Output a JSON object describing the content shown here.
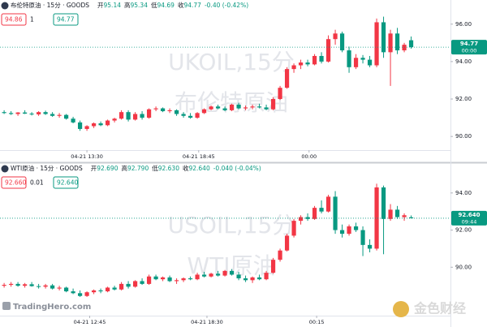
{
  "chart_data": [
    {
      "type": "candlestick",
      "title": "布伦特原油 · 15分 · GOODS",
      "header_ohlc": [
        {
          "label": "开",
          "value": "95.14"
        },
        {
          "label": "高",
          "value": "95.34"
        },
        {
          "label": "低",
          "value": "94.69"
        },
        {
          "label": "收",
          "value": "94.77"
        }
      ],
      "header_change": "-0.40 (-0.42%)",
      "boxes": [
        "94.86",
        "1",
        "94.77"
      ],
      "watermark": [
        "UKOIL,15分",
        "布伦特原油"
      ],
      "up_color": "#f23645",
      "down_color": "#089981",
      "xlim": [
        -0.6,
        64.7
      ],
      "ylim": [
        89.27,
        97.29
      ],
      "yticks": [
        {
          "value": 90,
          "label": "90.00"
        },
        {
          "value": 92,
          "label": "92.00"
        },
        {
          "value": 94,
          "label": "94.00"
        },
        {
          "value": 96,
          "label": "96.00"
        }
      ],
      "xticks": [
        {
          "value": 12,
          "label": "04-21 13:30"
        },
        {
          "value": 28.2,
          "label": "04-21 18:45"
        },
        {
          "value": 44.2,
          "label": "00:00"
        }
      ],
      "last_price": {
        "value": 94.77,
        "label": "94.77",
        "time": "00:00"
      },
      "open": [
        91.3,
        91.25,
        91.2,
        91.28,
        91.22,
        91.18,
        91.3,
        91.2,
        91.1,
        91.15,
        90.95,
        90.75,
        90.4,
        90.55,
        90.7,
        90.6,
        90.85,
        90.95,
        91.3,
        90.9,
        91.2,
        91.0,
        91.45,
        91.5,
        91.35,
        91.4,
        91.2,
        91.1,
        91.0,
        91.25,
        91.45,
        91.6,
        91.5,
        91.4,
        91.7,
        91.5,
        91.55,
        91.6,
        91.55,
        91.45,
        92.0,
        92.6,
        93.6,
        93.8,
        93.95,
        93.85,
        94.3,
        94.0,
        95.2,
        95.5,
        94.6,
        93.7,
        94.2,
        94.1,
        93.8,
        96.1,
        94.5,
        95.5,
        94.6,
        95.14
      ],
      "high": [
        91.4,
        91.35,
        91.3,
        91.4,
        91.3,
        91.35,
        91.38,
        91.3,
        91.25,
        91.2,
        91.05,
        90.85,
        90.6,
        90.75,
        90.8,
        90.9,
        91.0,
        91.4,
        91.4,
        91.3,
        91.35,
        91.5,
        91.6,
        91.55,
        91.5,
        91.45,
        91.3,
        91.25,
        91.3,
        91.5,
        91.65,
        91.7,
        91.6,
        91.75,
        91.8,
        91.65,
        91.7,
        91.75,
        91.7,
        92.1,
        92.7,
        93.7,
        93.9,
        94.1,
        94.1,
        94.4,
        94.5,
        95.4,
        95.7,
        95.6,
        94.8,
        94.4,
        94.35,
        94.3,
        96.3,
        96.4,
        95.7,
        95.8,
        95.0,
        95.34
      ],
      "low": [
        91.2,
        91.15,
        91.1,
        91.2,
        91.12,
        91.1,
        91.15,
        91.05,
        91.0,
        90.9,
        90.7,
        90.3,
        90.3,
        90.45,
        90.55,
        90.55,
        90.75,
        90.9,
        90.8,
        90.85,
        90.9,
        90.95,
        91.35,
        91.3,
        91.25,
        91.1,
        91.0,
        90.95,
        90.95,
        91.2,
        91.4,
        91.45,
        91.35,
        91.35,
        91.45,
        91.4,
        91.45,
        91.5,
        91.4,
        91.4,
        91.95,
        92.55,
        93.4,
        93.6,
        93.75,
        93.8,
        93.9,
        93.95,
        94.9,
        94.5,
        93.4,
        93.6,
        93.9,
        93.7,
        93.7,
        94.2,
        92.7,
        94.4,
        94.5,
        94.69
      ],
      "close": [
        91.25,
        91.2,
        91.28,
        91.22,
        91.18,
        91.3,
        91.2,
        91.1,
        91.15,
        90.95,
        90.75,
        90.4,
        90.55,
        90.7,
        90.6,
        90.85,
        90.95,
        91.3,
        90.9,
        91.2,
        91.0,
        91.45,
        91.5,
        91.35,
        91.4,
        91.2,
        91.1,
        91.0,
        91.25,
        91.45,
        91.6,
        91.5,
        91.4,
        91.7,
        91.5,
        91.55,
        91.6,
        91.55,
        91.45,
        92.0,
        92.6,
        93.6,
        93.8,
        93.95,
        93.85,
        94.3,
        94.0,
        95.2,
        95.5,
        94.6,
        93.7,
        94.2,
        94.1,
        93.8,
        96.1,
        94.5,
        95.5,
        94.6,
        94.9,
        94.77
      ]
    },
    {
      "type": "candlestick",
      "title": "WTI原油 · 15分 · GOODS",
      "header_ohlc": [
        {
          "label": "开",
          "value": "92.690"
        },
        {
          "label": "高",
          "value": "92.790"
        },
        {
          "label": "低",
          "value": "92.630"
        },
        {
          "label": "收",
          "value": "92.640"
        }
      ],
      "header_change": "-0.040 (-0.04%)",
      "boxes": [
        "92.660",
        "0.01",
        "92.640"
      ],
      "watermark": [
        "USOIL,15分",
        "WTI原油"
      ],
      "up_color": "#f23645",
      "down_color": "#089981",
      "xlim": [
        -0.6,
        64.7
      ],
      "ylim": [
        87.39,
        95.61
      ],
      "yticks": [
        {
          "value": 90,
          "label": "90.00"
        },
        {
          "value": 92,
          "label": "92.00"
        },
        {
          "value": 94,
          "label": "94.00"
        }
      ],
      "xticks": [
        {
          "value": 12.4,
          "label": "04-21 12:45"
        },
        {
          "value": 29.4,
          "label": "04-21 18:30"
        },
        {
          "value": 45.3,
          "label": "00:15"
        }
      ],
      "last_price": {
        "value": 92.64,
        "label": "92.640",
        "time": "09:44"
      },
      "open": [
        89.0,
        89.05,
        89.1,
        89.0,
        89.08,
        88.98,
        88.95,
        89.02,
        88.85,
        88.9,
        88.7,
        88.6,
        88.45,
        88.65,
        88.75,
        88.7,
        88.9,
        88.8,
        89.1,
        88.95,
        89.25,
        89.1,
        89.5,
        89.35,
        89.45,
        89.25,
        89.3,
        89.4,
        89.35,
        89.6,
        89.5,
        89.65,
        89.55,
        89.8,
        89.6,
        89.4,
        89.3,
        89.45,
        89.35,
        89.7,
        90.4,
        90.9,
        91.7,
        92.5,
        92.7,
        92.6,
        93.2,
        93.0,
        93.8,
        92.0,
        91.8,
        92.2,
        92.0,
        91.2,
        91.0,
        94.3,
        92.6,
        93.1,
        92.7,
        92.69
      ],
      "high": [
        89.15,
        89.2,
        89.2,
        89.15,
        89.2,
        89.1,
        89.1,
        89.1,
        89.0,
        88.95,
        88.85,
        88.75,
        88.7,
        88.8,
        88.85,
        88.95,
        89.0,
        89.2,
        89.25,
        89.3,
        89.4,
        89.6,
        89.6,
        89.5,
        89.55,
        89.4,
        89.45,
        89.5,
        89.7,
        89.75,
        89.7,
        89.8,
        89.85,
        89.9,
        89.75,
        89.55,
        89.5,
        89.6,
        89.8,
        90.5,
        91.0,
        91.8,
        92.6,
        92.8,
        92.9,
        93.3,
        93.6,
        93.9,
        94.1,
        92.3,
        92.3,
        92.4,
        92.2,
        91.5,
        94.5,
        94.4,
        93.4,
        93.3,
        92.9,
        92.79
      ],
      "low": [
        88.9,
        88.95,
        88.95,
        88.9,
        88.95,
        88.85,
        88.85,
        88.8,
        88.75,
        88.65,
        88.55,
        88.4,
        88.4,
        88.55,
        88.6,
        88.65,
        88.75,
        88.75,
        88.85,
        88.9,
        89.05,
        89.05,
        89.3,
        89.25,
        89.2,
        89.1,
        89.2,
        89.3,
        89.3,
        89.45,
        89.45,
        89.5,
        89.5,
        89.55,
        89.3,
        89.2,
        89.15,
        89.3,
        89.3,
        89.65,
        90.3,
        90.85,
        91.6,
        92.3,
        92.5,
        92.55,
        92.9,
        92.95,
        91.8,
        91.6,
        91.7,
        91.9,
        90.6,
        90.8,
        90.9,
        90.7,
        92.5,
        92.6,
        92.5,
        92.63
      ],
      "close": [
        89.05,
        89.1,
        89.0,
        89.08,
        88.98,
        88.95,
        89.02,
        88.85,
        88.9,
        88.7,
        88.6,
        88.45,
        88.65,
        88.75,
        88.7,
        88.9,
        88.8,
        89.1,
        88.95,
        89.25,
        89.1,
        89.5,
        89.35,
        89.45,
        89.25,
        89.3,
        89.4,
        89.35,
        89.6,
        89.5,
        89.65,
        89.55,
        89.8,
        89.6,
        89.4,
        89.3,
        89.45,
        89.35,
        89.7,
        90.4,
        90.9,
        91.7,
        92.5,
        92.7,
        92.6,
        93.2,
        93.0,
        93.8,
        92.0,
        91.8,
        92.2,
        92.0,
        91.2,
        91.0,
        94.3,
        92.6,
        93.1,
        92.7,
        92.8,
        92.64
      ]
    }
  ],
  "branding": {
    "logo": "TradingHero.com",
    "source": "金色财经"
  }
}
